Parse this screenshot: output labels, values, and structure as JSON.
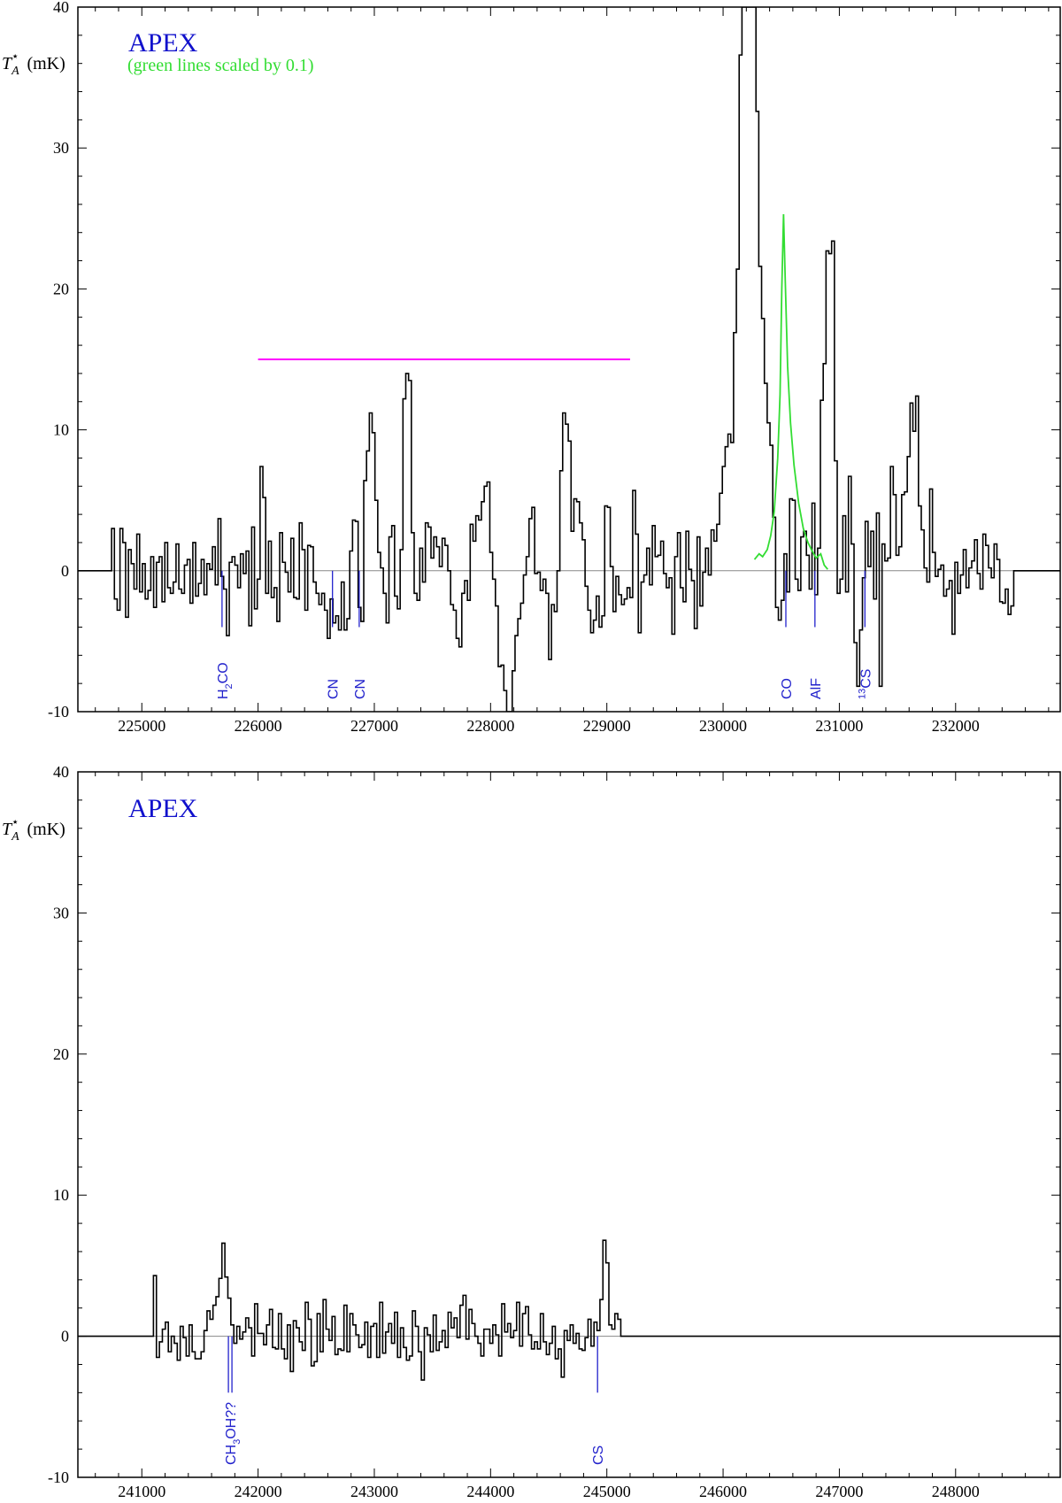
{
  "chart_data": [
    {
      "type": "line",
      "title": "APEX",
      "note": "(green lines scaled by 0.1)",
      "ylabel": "T*A (mK)",
      "xlim": [
        224450,
        232900
      ],
      "ylim": [
        -10,
        40
      ],
      "x_ticks": [
        225000,
        226000,
        227000,
        228000,
        229000,
        230000,
        231000,
        232000
      ],
      "y_ticks": [
        -10,
        0,
        10,
        20,
        30,
        40
      ],
      "baseline": 0,
      "series": [
        {
          "style": "step",
          "color": "#000000",
          "x_start": 224740,
          "x_end": 232500,
          "y": [
            3,
            -2,
            -2.8,
            3,
            2,
            -3.3,
            1.5,
            0.5,
            -1.3,
            2.6,
            -1.5,
            0.5,
            -2,
            -1.4,
            1,
            -2.6,
            0.6,
            1,
            -2.2,
            2,
            -1.2,
            -1.6,
            -0.8,
            1.9,
            -1.3,
            -1.6,
            0.4,
            0.8,
            -2.3,
            2,
            -1.8,
            -0.9,
            0.8,
            -1.7,
            0.5,
            0.1,
            1.7,
            -1,
            3.7,
            -0.4,
            -1.3,
            -4.6,
            0.6,
            1,
            0.4,
            -1.2,
            1.2,
            -0.2,
            1.4,
            -3.9,
            3.1,
            -2.7,
            -0.6,
            7.4,
            5.2,
            -1.6,
            2.1,
            -1.9,
            -1.2,
            -3.6,
            2.7,
            0.6,
            -0.1,
            -1.5,
            2.3,
            -1.9,
            -2,
            3.4,
            1.5,
            -2.8,
            1.8,
            1.7,
            -0.8,
            -1.6,
            -2.4,
            -1.6,
            -2.8,
            -4.8,
            -2,
            -3.7,
            -3.2,
            -4.2,
            -0.8,
            -4.2,
            -3.4,
            1.4,
            3.6,
            3.5,
            -2.6,
            -3.6,
            6.4,
            8.5,
            11.2,
            9.8,
            5,
            1.3,
            0.2,
            -1.6,
            -3.7,
            2.4,
            3.2,
            -1.8,
            -2.7,
            1.5,
            12.2,
            14,
            13.5,
            2.7,
            -1.6,
            -2.1,
            1.6,
            -0.8,
            3.4,
            3.1,
            0.9,
            2.4,
            1.7,
            0.3,
            2.3,
            1.8,
            0,
            -2.4,
            -2.8,
            -4.8,
            -5.4,
            -1.6,
            -0.7,
            -2.1,
            3.3,
            2.1,
            3.9,
            3.6,
            4.9,
            6,
            6.3,
            1.3,
            -0.6,
            -2.5,
            -6.8,
            -6.7,
            -8.5,
            -10,
            -10,
            -7.1,
            -4.6,
            -3.4,
            -2.3,
            -0.3,
            1,
            3.7,
            4.5,
            -0.2,
            -0.1,
            -1.4,
            -0.6,
            -1.6,
            -6.3,
            -2.4,
            -2.9,
            0,
            7.1,
            11.2,
            10.4,
            9.2,
            2.8,
            5.1,
            4.9,
            3.4,
            2.2,
            -1.1,
            -2.8,
            -4.4,
            -3.5,
            -1.8,
            -4,
            -3.2,
            4.6,
            4.5,
            0.3,
            -2.9,
            -0.4,
            -1.7,
            -2.4,
            -2,
            -1.2,
            -1.9,
            5.7,
            2.6,
            -4.4,
            -0.8,
            -0.3,
            1.6,
            -1,
            3.2,
            1,
            1.1,
            2.1,
            -0.2,
            -1.2,
            -0.5,
            -4.5,
            1,
            2.7,
            -1.2,
            -2.2,
            2.8,
            0.1,
            -0.7,
            -4.1,
            2.4,
            -2.5,
            -0.1,
            1.6,
            -0.3,
            2.9,
            2.1,
            3.3,
            5.5,
            7.4,
            8.8,
            9.7,
            9.1,
            16.9,
            21.4,
            36.6,
            40,
            40,
            40,
            40,
            40,
            32.6,
            21.6,
            17.9,
            13.3,
            10.5,
            8.9,
            3.8,
            -2.6,
            -3.5,
            -2.1,
            1.2,
            -1.5,
            5.1,
            5,
            -0.6,
            -1.4,
            2.4,
            2.8,
            1.1,
            -1.3,
            4.8,
            -1.7,
            1.6,
            12.1,
            14.7,
            22.7,
            22.5,
            23.4,
            7.8,
            -1.6,
            -0.6,
            3.9,
            -1.5,
            6.7,
            1.9,
            -5.1,
            -8.2,
            -4.2,
            -0.5,
            3.5,
            0.3,
            2.8,
            -2,
            4.1,
            -8.2,
            1.9,
            0.7,
            0.9,
            7.4,
            5.4,
            1.1,
            1.7,
            5.4,
            5.6,
            8.1,
            11.9,
            9.9,
            12.4,
            4.6,
            2.9,
            0.2,
            -0.8,
            5.8,
            1.3,
            -0.4,
            0.1,
            0.4,
            -1.8,
            -1.3,
            -0.7,
            -4.5,
            0.6,
            -1.6,
            -0.3,
            1.5,
            -1.2,
            0.2,
            0.7,
            2.2,
            -0.2,
            -1.3,
            2.6,
            1.8,
            0.2,
            -0.5,
            1.9,
            0.8,
            -2.2,
            -2.3,
            -1.3,
            -3.1,
            -2.5
          ]
        },
        {
          "style": "line",
          "color": "#33dd33",
          "points": [
            [
              230270,
              0.8
            ],
            [
              230310,
              1.2
            ],
            [
              230340,
              1
            ],
            [
              230380,
              1.5
            ],
            [
              230410,
              2.5
            ],
            [
              230440,
              4.2
            ],
            [
              230470,
              8
            ],
            [
              230490,
              12.5
            ],
            [
              230505,
              20
            ],
            [
              230520,
              25.3
            ],
            [
              230535,
              20.5
            ],
            [
              230555,
              14.5
            ],
            [
              230580,
              10.5
            ],
            [
              230610,
              7.5
            ],
            [
              230650,
              4.8
            ],
            [
              230690,
              3
            ],
            [
              230730,
              2
            ],
            [
              230760,
              1.5
            ],
            [
              230800,
              0.9
            ],
            [
              230840,
              1.2
            ],
            [
              230870,
              0.4
            ],
            [
              230900,
              0.1
            ]
          ]
        }
      ],
      "segments": [
        {
          "color": "#ff00ff",
          "x1": 226000,
          "x2": 229200,
          "y": 15
        }
      ],
      "line_ids": [
        {
          "x": 225690,
          "label": "H2CO"
        },
        {
          "x": 226640,
          "label": "CN"
        },
        {
          "x": 226870,
          "label": "CN"
        },
        {
          "x": 230540,
          "label": "CO"
        },
        {
          "x": 230790,
          "label": "AlF"
        },
        {
          "x": 231220,
          "label": "13CS"
        }
      ]
    },
    {
      "type": "line",
      "title": "APEX",
      "ylabel": "T*A (mK)",
      "xlim": [
        240450,
        248900
      ],
      "ylim": [
        -10,
        40
      ],
      "x_ticks": [
        241000,
        242000,
        243000,
        244000,
        245000,
        246000,
        247000,
        248000
      ],
      "y_ticks": [
        -10,
        0,
        10,
        20,
        30,
        40
      ],
      "baseline": 0,
      "series": [
        {
          "style": "step",
          "color": "#000000",
          "x_start": 241100,
          "x_end": 245120,
          "y": [
            4.3,
            -1.5,
            -0.4,
            0.5,
            1,
            -1.1,
            0,
            -0.5,
            -1.7,
            0.7,
            -0.1,
            -1.4,
            0.8,
            -1.1,
            -1.6,
            -1.6,
            -1.1,
            0.4,
            1.8,
            1.2,
            2.2,
            2.8,
            4.1,
            6.6,
            4.2,
            2.7,
            0.8,
            -0.5,
            0.7,
            -0.2,
            0.3,
            1.3,
            0.6,
            -1.4,
            2.3,
            0.2,
            0.2,
            -0.6,
            0.8,
            1.9,
            -0.8,
            -0.9,
            1.6,
            -0.9,
            -1.6,
            0.8,
            -2.5,
            1.1,
            0.6,
            -0.4,
            -1,
            2.4,
            1.2,
            -2.1,
            -1.8,
            1.6,
            -1.1,
            2.6,
            0.5,
            -0.3,
            1.4,
            -1.3,
            -0.9,
            -1,
            2.2,
            -1.1,
            1.6,
            0.8,
            0.1,
            -0.8,
            -0.6,
            1,
            -1.5,
            0.7,
            0.9,
            -1.5,
            2.4,
            -1.2,
            0.3,
            0.9,
            -0.5,
            1.7,
            -1.5,
            0.6,
            -0.8,
            -1.7,
            -1.4,
            1.8,
            0.7,
            -1.1,
            -3.1,
            0.6,
            0.1,
            -1.1,
            1.5,
            -1,
            -0.4,
            0.4,
            -0.8,
            1.7,
            0.6,
            1.3,
            -0.1,
            2.2,
            2.9,
            -0.2,
            1.9,
            0.9,
            0,
            -0.5,
            -1.4,
            0.5,
            0.5,
            -0.5,
            0.8,
            0.1,
            -1.4,
            2.3,
            0.3,
            0.9,
            -0.1,
            0.4,
            2.4,
            -0.7,
            1.6,
            2.1,
            0.1,
            -0.9,
            -0.4,
            -0.9,
            1.6,
            -0.4,
            -1.3,
            -0.5,
            0.7,
            -1.6,
            -0.9,
            -2.9,
            0.4,
            -0.3,
            0.8,
            -0.5,
            0.2,
            -0.9,
            -1,
            -0.1,
            1.2,
            -0.7,
            1,
            0.4,
            2.6,
            6.8,
            5.2,
            0.8,
            0.5,
            1.6,
            1.2
          ]
        }
      ],
      "segments": [],
      "line_ids": [
        {
          "x": 241760,
          "label": "CH3OH??",
          "double": true
        },
        {
          "x": 244920,
          "label": "CS"
        }
      ]
    }
  ]
}
